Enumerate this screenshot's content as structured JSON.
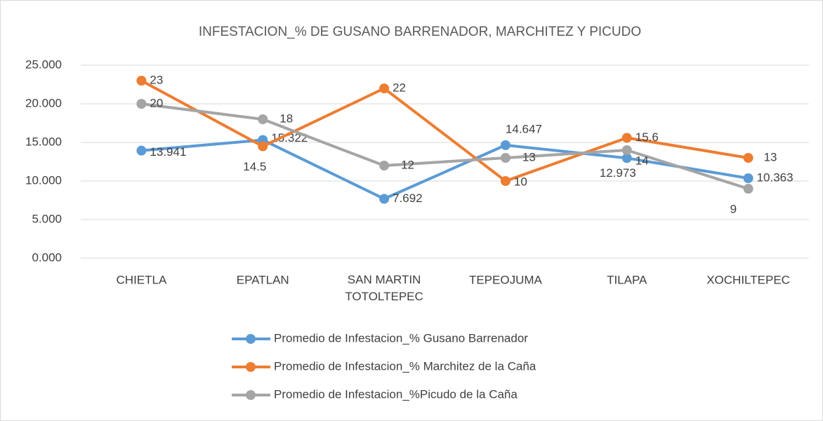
{
  "chart_data": {
    "type": "line",
    "title": "INFESTACION_% DE GUSANO BARRENADOR, MARCHITEZ Y PICUDO",
    "categories": [
      "CHIETLA",
      "EPATLAN",
      "SAN MARTIN TOTOLTEPEC",
      "TEPEOJUMA",
      "TILAPA",
      "XOCHILTEPEC"
    ],
    "series": [
      {
        "name": "Promedio de Infestacion_% Gusano Barrenador",
        "color": "#5b9bd5",
        "values": [
          13.941,
          15.322,
          7.692,
          14.647,
          12.973,
          10.363
        ]
      },
      {
        "name": "Promedio de Infestacion_% Marchitez de la Caña",
        "color": "#ed7d31",
        "values": [
          23,
          14.5,
          22,
          10,
          15.6,
          13
        ]
      },
      {
        "name": "Promedio de Infestacion_%Picudo de la Caña",
        "color": "#a5a5a5",
        "values": [
          20,
          18,
          12,
          13,
          14,
          9
        ]
      }
    ],
    "ylim": [
      0,
      25
    ],
    "yticks": [
      {
        "value": 0,
        "label": "0.000"
      },
      {
        "value": 5,
        "label": "5.000"
      },
      {
        "value": 10,
        "label": "10.000"
      },
      {
        "value": 15,
        "label": "15.000"
      },
      {
        "value": 20,
        "label": "20.000"
      },
      {
        "value": 25,
        "label": "25.000"
      }
    ],
    "grid": true,
    "legend": "bottom"
  }
}
